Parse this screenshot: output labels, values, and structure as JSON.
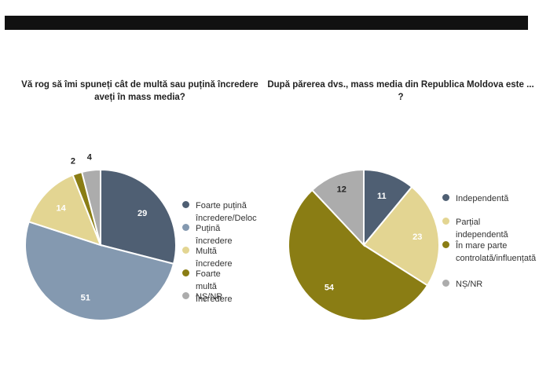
{
  "chart_data": [
    {
      "type": "pie",
      "title": "Vă rog să îmi spuneți cât de multă sau puțină încredere aveți în mass media?",
      "slices": [
        {
          "name": "Foarte puțină încredere/Deloc",
          "value": 29,
          "color": "#4f5f73"
        },
        {
          "name": "Puțină încredere",
          "value": 51,
          "color": "#8499b0"
        },
        {
          "name": "Multă încredere",
          "value": 14,
          "color": "#e3d592"
        },
        {
          "name": "Foarte multă încredere",
          "value": 2,
          "color": "#8a7d14"
        },
        {
          "name": "NȘ/NR",
          "value": 4,
          "color": "#acacac"
        }
      ],
      "legend_position": "right"
    },
    {
      "type": "pie",
      "title": "După părerea dvs., mass media din Republica Moldova este ... ?",
      "slices": [
        {
          "name": "Independentă",
          "value": 11,
          "color": "#4f5f73"
        },
        {
          "name": "Parțial independentă",
          "value": 23,
          "color": "#e3d592"
        },
        {
          "name": "În mare parte\ncontrolată/influențată",
          "value": 54,
          "color": "#8a7d14"
        },
        {
          "name": "NȘ/NR",
          "value": 12,
          "color": "#acacac"
        }
      ],
      "legend_position": "right"
    }
  ]
}
